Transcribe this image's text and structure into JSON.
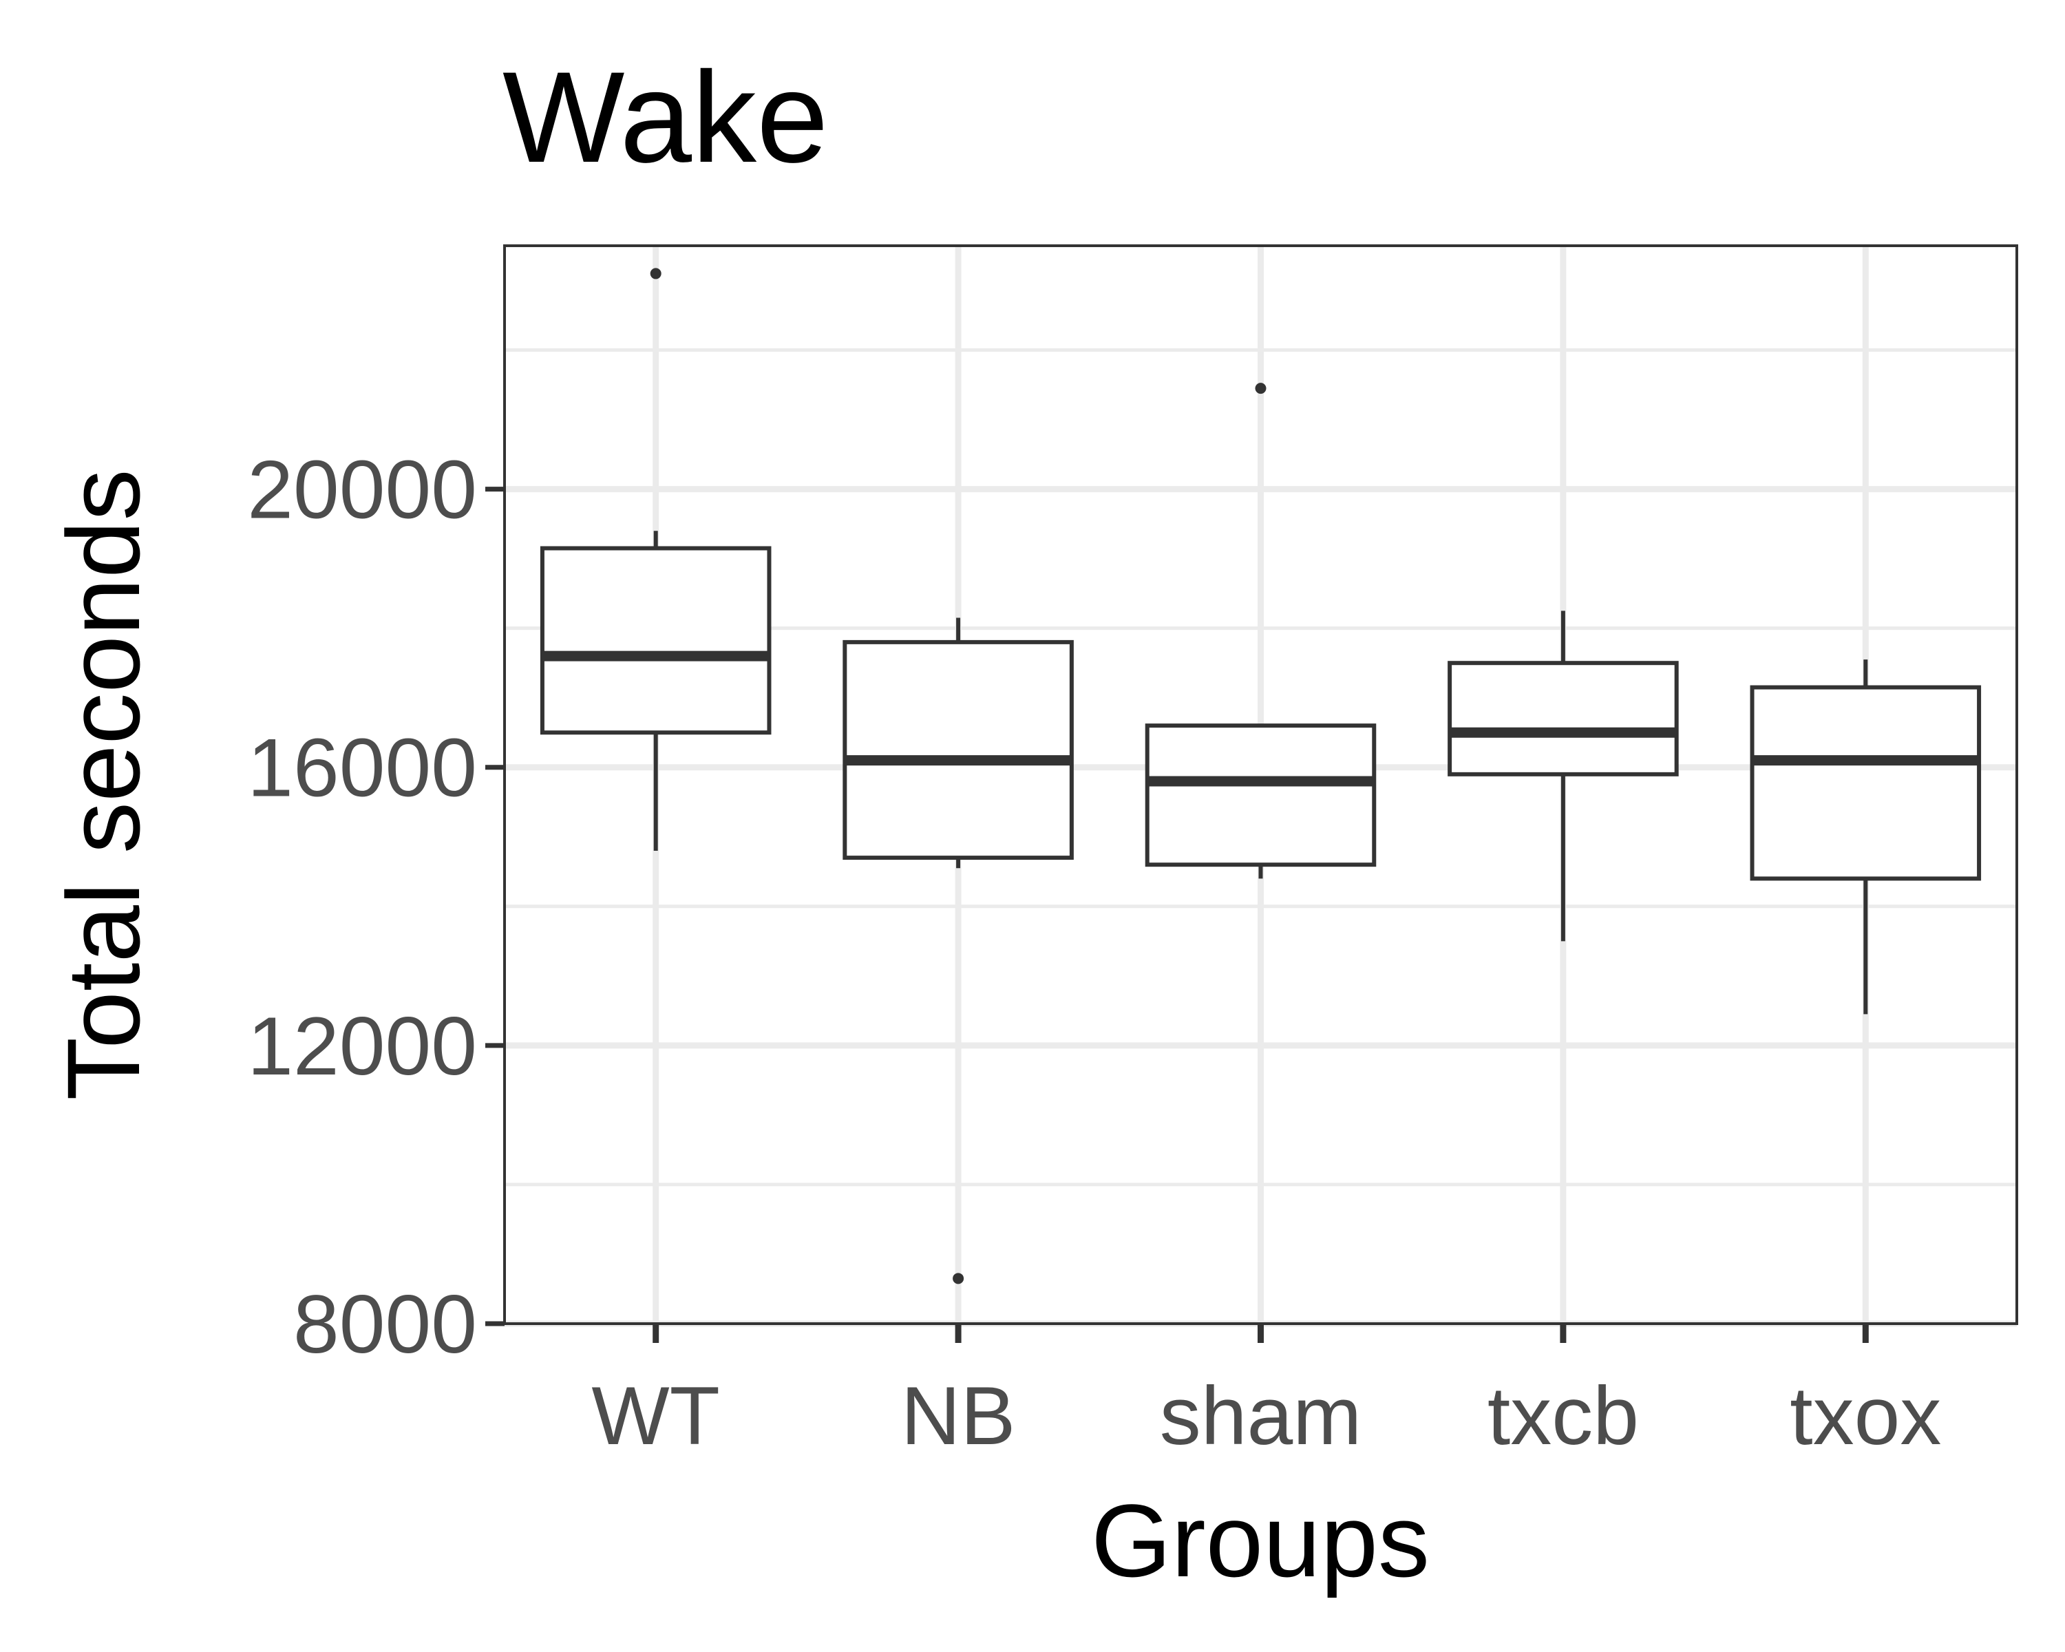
{
  "chart_data": {
    "type": "boxplot",
    "title": "Wake",
    "xlabel": "Groups",
    "ylabel": "Total seconds",
    "ylim": [
      8000,
      23500
    ],
    "yticks": [
      8000,
      12000,
      16000,
      20000
    ],
    "grid": true,
    "categories": [
      "WT",
      "NB",
      "sham",
      "txcb",
      "txox"
    ],
    "boxes": [
      {
        "category": "WT",
        "whisker_low": 14800,
        "q1": 16500,
        "median": 17600,
        "q3": 19150,
        "whisker_high": 19400,
        "outliers": [
          23100
        ]
      },
      {
        "category": "NB",
        "whisker_low": 14550,
        "q1": 14700,
        "median": 16100,
        "q3": 17800,
        "whisker_high": 18150,
        "outliers": [
          8650
        ]
      },
      {
        "category": "sham",
        "whisker_low": 14400,
        "q1": 14600,
        "median": 15800,
        "q3": 16600,
        "whisker_high": 16600,
        "outliers": [
          21450
        ]
      },
      {
        "category": "txcb",
        "whisker_low": 13500,
        "q1": 15900,
        "median": 16500,
        "q3": 17500,
        "whisker_high": 18250,
        "outliers": []
      },
      {
        "category": "txox",
        "whisker_low": 12450,
        "q1": 14400,
        "median": 16100,
        "q3": 17150,
        "whisker_high": 17550,
        "outliers": []
      }
    ],
    "colors": {
      "box_stroke": "#333333",
      "grid": "#ebebeb",
      "panel_border": "#333333",
      "tick_text": "#4d4d4d"
    }
  }
}
